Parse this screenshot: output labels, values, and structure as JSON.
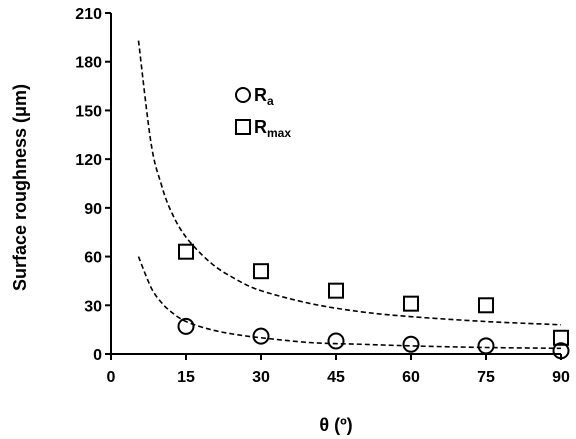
{
  "chart_data": {
    "type": "scatter",
    "xlabel": "θ (º)",
    "ylabel": "Surface roughness (μm)",
    "xlim": [
      0,
      90
    ],
    "ylim": [
      0,
      210
    ],
    "xticks": [
      0,
      15,
      30,
      45,
      60,
      75,
      90
    ],
    "yticks": [
      0,
      30,
      60,
      90,
      120,
      150,
      180,
      210
    ],
    "grid": false,
    "legend_position": "top-center",
    "series": [
      {
        "name": "Ra",
        "label_main": "R",
        "label_sub": "a",
        "marker": "circle",
        "x": [
          15,
          30,
          45,
          60,
          75,
          90
        ],
        "y": [
          17,
          11,
          8,
          6,
          5,
          2
        ]
      },
      {
        "name": "Rmax",
        "label_main": "R",
        "label_sub": "max",
        "marker": "square",
        "x": [
          15,
          30,
          45,
          60,
          75,
          90
        ],
        "y": [
          63,
          51,
          39,
          31,
          30,
          10
        ]
      }
    ],
    "trendlines": [
      {
        "series": "Ra",
        "style": "dashed",
        "x": [
          5.5,
          8,
          10,
          12,
          15,
          20,
          25,
          30,
          40,
          50,
          60,
          75,
          90
        ],
        "y": [
          60,
          41,
          32,
          26,
          20,
          15,
          12,
          10,
          7,
          6,
          5,
          4,
          3.5
        ]
      },
      {
        "series": "Rmax",
        "style": "dashed",
        "x": [
          5.5,
          8,
          10,
          12,
          15,
          20,
          25,
          30,
          40,
          50,
          60,
          75,
          90
        ],
        "y": [
          193,
          130,
          105,
          88,
          72,
          56,
          46,
          39,
          31,
          26,
          23,
          20,
          18
        ]
      }
    ]
  }
}
